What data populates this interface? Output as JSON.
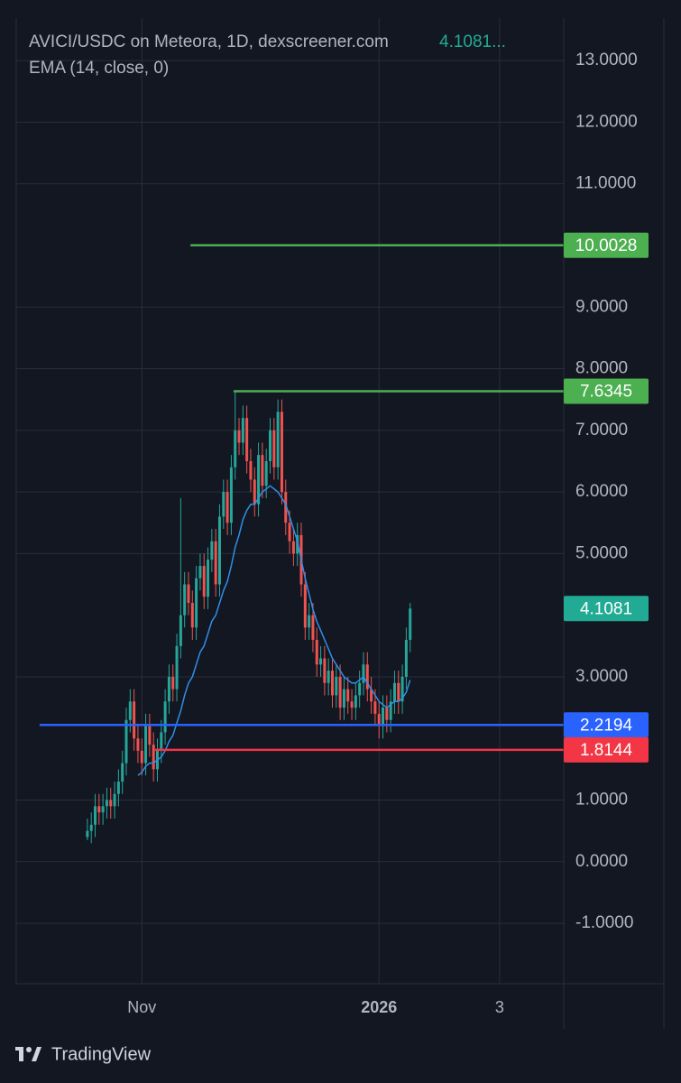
{
  "chart_data": {
    "type": "candlestick",
    "title": "AVICI/USDC on Meteora, 1D, dexscreener.com",
    "last_price_text": "4.1081...",
    "indicator": "EMA (14, close, 0)",
    "brand": "TradingView",
    "x": [
      0,
      1,
      2,
      3,
      4,
      5,
      6,
      7,
      8,
      9,
      10,
      11,
      12,
      13,
      14,
      15,
      16,
      17,
      18,
      19,
      20,
      21,
      22,
      23,
      24,
      25,
      26,
      27,
      28,
      29,
      30,
      31,
      32,
      33,
      34,
      35,
      36,
      37,
      38,
      39,
      40,
      41,
      42,
      43,
      44,
      45,
      46,
      47,
      48,
      49,
      50,
      51,
      52,
      53,
      54,
      55,
      56,
      57,
      58,
      59,
      60,
      61,
      62,
      63,
      64,
      65,
      66,
      67,
      68,
      69,
      70,
      71,
      72,
      73,
      74,
      75,
      76,
      77,
      78,
      79,
      80,
      81,
      82,
      83
    ],
    "open": [
      0.4,
      0.5,
      0.6,
      0.9,
      0.8,
      0.9,
      1.0,
      0.9,
      1.1,
      1.3,
      1.6,
      2.3,
      2.6,
      2.0,
      1.8,
      1.6,
      2.2,
      1.9,
      1.5,
      1.8,
      2.1,
      2.6,
      3.0,
      2.8,
      3.5,
      4.0,
      4.5,
      4.2,
      3.8,
      4.6,
      4.8,
      4.3,
      4.9,
      5.2,
      4.5,
      5.6,
      6.0,
      5.5,
      6.4,
      7.0,
      6.8,
      7.2,
      6.5,
      6.2,
      5.8,
      6.6,
      6.1,
      6.5,
      7.0,
      6.4,
      7.3,
      6.0,
      5.5,
      5.2,
      5.0,
      5.3,
      4.5,
      3.8,
      4.0,
      3.6,
      3.2,
      3.3,
      2.9,
      3.1,
      2.7,
      3.0,
      2.5,
      2.8,
      2.6,
      2.5,
      2.7,
      2.9,
      3.2,
      2.8,
      2.6,
      2.4,
      2.2,
      2.5,
      2.3,
      2.6,
      2.9,
      2.6,
      3.0,
      3.6
    ],
    "high": [
      0.7,
      0.8,
      1.1,
      1.1,
      1.1,
      1.2,
      1.2,
      1.3,
      1.5,
      1.8,
      2.5,
      2.8,
      2.8,
      2.2,
      2.0,
      2.4,
      2.4,
      2.1,
      2.0,
      2.3,
      2.8,
      3.2,
      3.2,
      3.7,
      5.9,
      4.7,
      4.7,
      4.4,
      4.8,
      5.0,
      5.0,
      5.1,
      5.4,
      5.4,
      5.8,
      6.2,
      6.2,
      6.6,
      7.63,
      7.2,
      7.4,
      7.4,
      6.7,
      6.4,
      6.8,
      6.8,
      6.7,
      7.2,
      7.2,
      7.5,
      7.5,
      6.2,
      5.7,
      5.4,
      5.5,
      5.5,
      4.7,
      4.2,
      4.2,
      3.8,
      3.5,
      3.5,
      3.3,
      3.3,
      3.2,
      3.2,
      3.0,
      3.0,
      2.8,
      2.9,
      3.1,
      3.4,
      3.4,
      3.0,
      2.8,
      2.6,
      2.7,
      2.7,
      2.8,
      3.1,
      3.1,
      3.2,
      3.8,
      4.2
    ],
    "low": [
      0.35,
      0.3,
      0.4,
      0.6,
      0.6,
      0.7,
      0.7,
      0.7,
      0.9,
      1.1,
      1.4,
      2.1,
      1.8,
      1.6,
      1.4,
      1.4,
      1.7,
      1.3,
      1.3,
      1.6,
      1.9,
      2.4,
      2.6,
      2.6,
      3.3,
      3.8,
      4.0,
      3.6,
      3.6,
      4.4,
      4.1,
      4.1,
      4.7,
      4.3,
      4.3,
      5.4,
      5.3,
      5.3,
      6.2,
      6.6,
      6.6,
      6.3,
      6.0,
      5.6,
      5.6,
      5.9,
      5.9,
      6.3,
      6.2,
      6.2,
      5.8,
      5.3,
      5.0,
      4.8,
      4.8,
      4.3,
      3.6,
      3.6,
      3.4,
      3.0,
      3.0,
      2.7,
      2.7,
      2.5,
      2.5,
      2.3,
      2.3,
      2.4,
      2.3,
      2.3,
      2.5,
      2.7,
      2.6,
      2.4,
      2.2,
      2.0,
      2.0,
      2.1,
      2.1,
      2.4,
      2.4,
      2.4,
      2.8,
      3.4
    ],
    "close": [
      0.5,
      0.6,
      0.9,
      0.8,
      0.9,
      1.0,
      0.9,
      1.1,
      1.3,
      1.6,
      2.3,
      2.6,
      2.0,
      1.8,
      1.6,
      2.2,
      1.9,
      1.5,
      1.8,
      2.1,
      2.6,
      3.0,
      2.8,
      3.5,
      4.0,
      4.5,
      4.2,
      3.8,
      4.6,
      4.8,
      4.3,
      4.9,
      5.2,
      4.5,
      5.6,
      6.0,
      5.5,
      6.4,
      7.0,
      6.8,
      7.2,
      6.5,
      6.2,
      5.8,
      6.6,
      6.1,
      6.5,
      7.0,
      6.4,
      7.3,
      6.0,
      5.5,
      5.2,
      5.0,
      5.3,
      4.5,
      3.8,
      4.0,
      3.6,
      3.2,
      3.3,
      2.9,
      3.1,
      2.7,
      3.0,
      2.5,
      2.8,
      2.6,
      2.5,
      2.7,
      2.9,
      3.2,
      2.8,
      2.6,
      2.4,
      2.2,
      2.5,
      2.3,
      2.6,
      2.9,
      2.6,
      3.0,
      3.6,
      4.1081
    ],
    "up_color": "#26a69a",
    "down_color": "#ef5350",
    "ema": {
      "color": "#2f8fe8",
      "values": [
        null,
        null,
        null,
        null,
        null,
        null,
        null,
        null,
        null,
        null,
        null,
        null,
        null,
        1.4,
        1.45,
        1.55,
        1.6,
        1.6,
        1.65,
        1.7,
        1.8,
        1.95,
        2.05,
        2.25,
        2.45,
        2.7,
        2.9,
        3.0,
        3.2,
        3.4,
        3.5,
        3.7,
        3.9,
        4.0,
        4.2,
        4.4,
        4.55,
        4.8,
        5.1,
        5.3,
        5.55,
        5.7,
        5.8,
        5.8,
        5.9,
        6.0,
        6.05,
        6.1,
        6.05,
        6.0,
        5.9,
        5.8,
        5.6,
        5.4,
        5.2,
        4.9,
        4.6,
        4.35,
        4.1,
        3.9,
        3.75,
        3.6,
        3.45,
        3.3,
        3.2,
        3.1,
        3.0,
        2.95,
        2.9,
        2.9,
        2.95,
        3.0,
        2.9,
        2.8,
        2.7,
        2.6,
        2.55,
        2.5,
        2.55,
        2.6,
        2.6,
        2.65,
        2.75,
        2.95
      ]
    },
    "levels": [
      {
        "value": 10.0028,
        "from": 26.5,
        "color": "#4caf50"
      },
      {
        "value": 7.6345,
        "from": 37.6,
        "color": "#4caf50"
      },
      {
        "value": 2.2194,
        "from": -12.3,
        "color": "#2962ff"
      },
      {
        "value": 1.8144,
        "from": 17.4,
        "color": "#f23645"
      }
    ],
    "last_price": {
      "value": 4.1081,
      "color": "#22ab94"
    },
    "xlim": [
      -18.3,
      122.5
    ],
    "xticks": [
      {
        "value": 14,
        "label": "Nov"
      },
      {
        "value": 75,
        "label": "2026"
      },
      {
        "value": 106,
        "label": "3"
      }
    ],
    "ylim": [
      -1.98,
      13.69
    ],
    "yticks": [
      {
        "value": 13,
        "label": "13.0000"
      },
      {
        "value": 12,
        "label": "12.0000"
      },
      {
        "value": 11,
        "label": "11.0000"
      },
      {
        "value": 9,
        "label": "9.0000"
      },
      {
        "value": 8,
        "label": "8.0000"
      },
      {
        "value": 7,
        "label": "7.0000"
      },
      {
        "value": 6,
        "label": "6.0000"
      },
      {
        "value": 5,
        "label": "5.0000"
      },
      {
        "value": 3,
        "label": "3.0000"
      },
      {
        "value": 1,
        "label": "1.0000"
      },
      {
        "value": 0,
        "label": "0.0000"
      },
      {
        "value": -1,
        "label": "-1.0000"
      }
    ],
    "grid": true
  }
}
